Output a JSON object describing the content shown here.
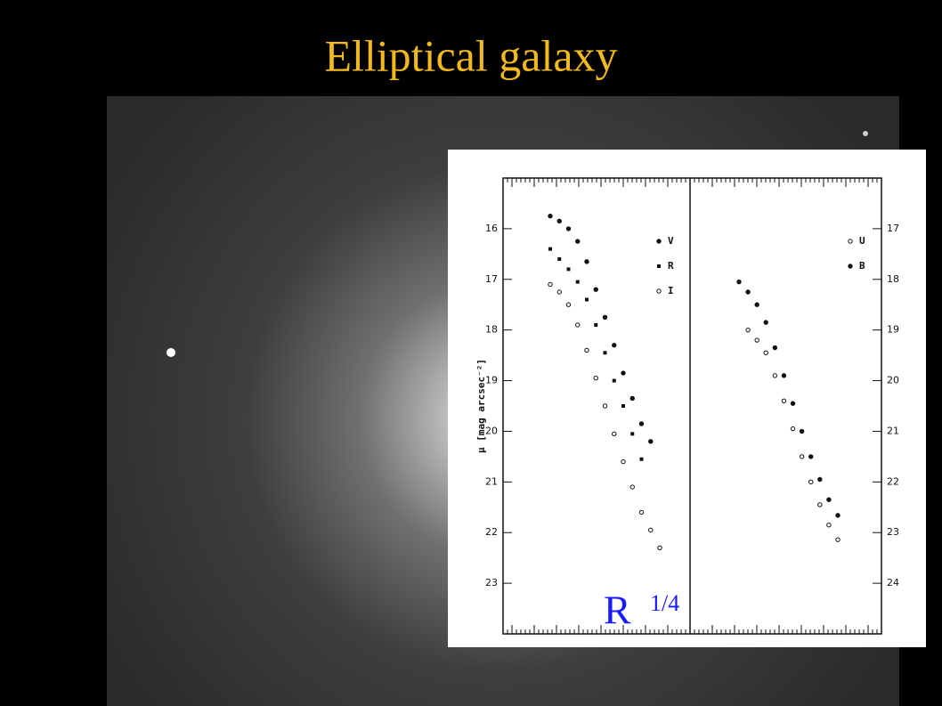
{
  "title": "Elliptical galaxy",
  "chart_data": [
    {
      "type": "line",
      "y_label": "μ [mag arcsec⁻²]",
      "y_inverted": true,
      "y_side": "left",
      "ylim": [
        15,
        24
      ],
      "yticks": [
        16,
        17,
        18,
        19,
        20,
        21,
        22,
        23
      ],
      "categories": [
        null,
        null,
        null,
        null,
        null,
        null,
        null,
        null,
        null,
        null,
        null,
        null,
        null
      ],
      "series": [
        {
          "name": "V",
          "color": "#111111",
          "marker": "filled",
          "values": [
            15.75,
            15.85,
            16.0,
            16.25,
            16.65,
            17.2,
            17.75,
            18.3,
            18.85,
            19.35,
            19.85,
            20.2,
            null
          ]
        },
        {
          "name": "R",
          "color": "#111111",
          "marker": "square",
          "values": [
            16.4,
            16.6,
            16.8,
            17.05,
            17.4,
            17.9,
            18.45,
            19.0,
            19.5,
            20.05,
            20.55,
            null,
            null
          ]
        },
        {
          "name": "I",
          "color": "#111111",
          "marker": "hollow",
          "values": [
            17.1,
            17.25,
            17.5,
            17.9,
            18.4,
            18.95,
            19.5,
            20.05,
            20.6,
            21.1,
            21.6,
            21.95,
            22.3
          ]
        }
      ],
      "annotation": {
        "base": "R",
        "exponent": "1/4",
        "color": "#1a1aff"
      }
    },
    {
      "type": "line",
      "y_inverted": true,
      "y_side": "right",
      "ylim": [
        16,
        25
      ],
      "yticks": [
        17,
        18,
        19,
        20,
        21,
        22,
        23,
        24
      ],
      "categories": [
        null,
        null,
        null,
        null,
        null,
        null,
        null,
        null,
        null,
        null,
        null,
        null
      ],
      "series": [
        {
          "name": "U",
          "color": "#111111",
          "marker": "hollow",
          "values": [
            null,
            19.0,
            19.2,
            19.45,
            19.9,
            20.4,
            20.95,
            21.5,
            22.0,
            22.45,
            22.85,
            23.14
          ]
        },
        {
          "name": "B",
          "color": "#111111",
          "marker": "filled",
          "values": [
            18.05,
            18.25,
            18.5,
            18.85,
            19.35,
            19.9,
            20.45,
            21.0,
            21.5,
            21.95,
            22.35,
            22.66
          ]
        }
      ]
    }
  ]
}
